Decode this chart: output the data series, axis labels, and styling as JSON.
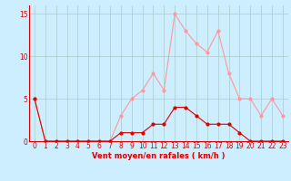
{
  "hours": [
    0,
    1,
    2,
    3,
    4,
    5,
    6,
    7,
    8,
    9,
    10,
    11,
    12,
    13,
    14,
    15,
    16,
    17,
    18,
    19,
    20,
    21,
    22,
    23
  ],
  "wind_avg": [
    5,
    0,
    0,
    0,
    0,
    0,
    0,
    0,
    1,
    1,
    1,
    2,
    2,
    4,
    4,
    3,
    2,
    2,
    2,
    1,
    0,
    0,
    0,
    0
  ],
  "wind_gust": [
    5,
    0,
    0,
    0,
    0,
    0,
    0,
    0,
    3,
    5,
    6,
    8,
    6,
    15,
    13,
    11.5,
    10.5,
    13,
    8,
    5,
    5,
    3,
    5,
    3
  ],
  "color_avg": "#dd0000",
  "color_gust": "#ff9999",
  "background_color": "#cceeff",
  "grid_color": "#aacccc",
  "xlabel": "Vent moyen/en rafales ( km/h )",
  "ylim": [
    0,
    16
  ],
  "xlim": [
    -0.5,
    23.5
  ],
  "yticks": [
    0,
    5,
    10,
    15
  ],
  "xticks": [
    0,
    1,
    2,
    3,
    4,
    5,
    6,
    7,
    8,
    9,
    10,
    11,
    12,
    13,
    14,
    15,
    16,
    17,
    18,
    19,
    20,
    21,
    22,
    23
  ],
  "tick_fontsize": 5.5,
  "label_fontsize": 6.0,
  "marker_size": 2.0,
  "line_width": 0.8
}
